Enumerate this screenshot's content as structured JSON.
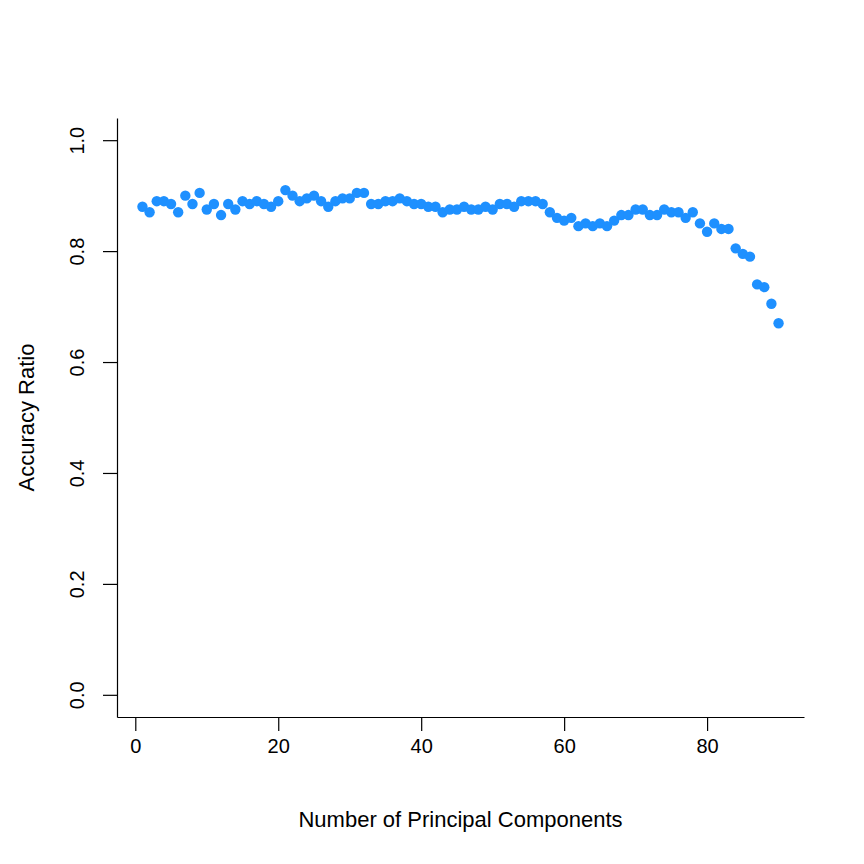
{
  "chart_data": {
    "type": "scatter",
    "xlabel": "Number of Principal Components",
    "ylabel": "Accuracy Ratio",
    "x": [
      1,
      2,
      3,
      4,
      5,
      6,
      7,
      8,
      9,
      10,
      11,
      12,
      13,
      14,
      15,
      16,
      17,
      18,
      19,
      20,
      21,
      22,
      23,
      24,
      25,
      26,
      27,
      28,
      29,
      30,
      31,
      32,
      33,
      34,
      35,
      36,
      37,
      38,
      39,
      40,
      41,
      42,
      43,
      44,
      45,
      46,
      47,
      48,
      49,
      50,
      51,
      52,
      53,
      54,
      55,
      56,
      57,
      58,
      59,
      60,
      61,
      62,
      63,
      64,
      65,
      66,
      67,
      68,
      69,
      70,
      71,
      72,
      73,
      74,
      75,
      76,
      77,
      78,
      79,
      80,
      81,
      82,
      83,
      84,
      85,
      86,
      87,
      88,
      89,
      90
    ],
    "values": [
      0.88,
      0.87,
      0.89,
      0.89,
      0.885,
      0.87,
      0.9,
      0.885,
      0.905,
      0.875,
      0.885,
      0.865,
      0.885,
      0.875,
      0.89,
      0.885,
      0.89,
      0.885,
      0.88,
      0.89,
      0.91,
      0.9,
      0.89,
      0.895,
      0.9,
      0.89,
      0.88,
      0.89,
      0.895,
      0.895,
      0.905,
      0.905,
      0.885,
      0.885,
      0.89,
      0.89,
      0.895,
      0.89,
      0.885,
      0.885,
      0.88,
      0.88,
      0.87,
      0.875,
      0.875,
      0.88,
      0.875,
      0.875,
      0.88,
      0.875,
      0.885,
      0.885,
      0.88,
      0.89,
      0.89,
      0.89,
      0.885,
      0.87,
      0.86,
      0.855,
      0.86,
      0.845,
      0.85,
      0.845,
      0.85,
      0.845,
      0.855,
      0.865,
      0.865,
      0.875,
      0.875,
      0.865,
      0.865,
      0.875,
      0.87,
      0.87,
      0.86,
      0.87,
      0.85,
      0.835,
      0.85,
      0.84,
      0.84,
      0.805,
      0.795,
      0.79,
      0.74,
      0.735,
      0.705,
      0.67
    ],
    "color": "#1e90ff",
    "marker": "circle",
    "xlim": [
      -2.56,
      93.56
    ],
    "xticks": [
      0,
      20,
      40,
      60,
      80
    ],
    "ylim": [
      -0.04,
      1.04
    ],
    "yticks": [
      {
        "value": 0,
        "label": "0.0"
      },
      0.2,
      0.4,
      0.6,
      0.8,
      {
        "value": 1,
        "label": "1.0"
      }
    ],
    "grid": false
  }
}
